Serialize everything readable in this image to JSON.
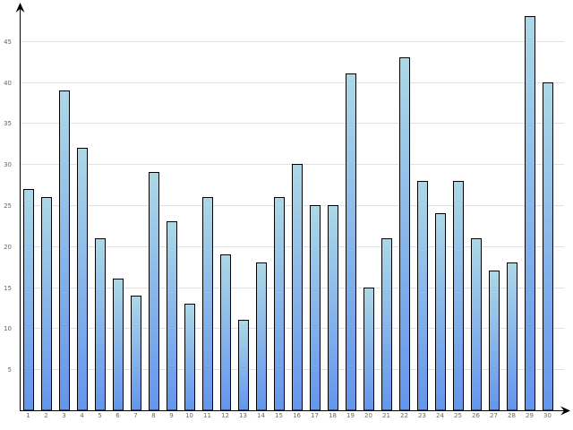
{
  "chart_data": {
    "type": "bar",
    "categories": [
      "1",
      "2",
      "3",
      "4",
      "5",
      "6",
      "7",
      "8",
      "9",
      "10",
      "11",
      "12",
      "13",
      "14",
      "15",
      "16",
      "17",
      "18",
      "19",
      "20",
      "21",
      "22",
      "23",
      "24",
      "25",
      "26",
      "27",
      "28",
      "29",
      "30"
    ],
    "values": [
      27,
      26,
      39,
      32,
      21,
      16,
      14,
      29,
      23,
      13,
      26,
      19,
      11,
      18,
      26,
      30,
      25,
      25,
      41,
      15,
      21,
      43,
      28,
      24,
      28,
      21,
      17,
      18,
      48,
      40
    ],
    "y_ticks": [
      "5",
      "10",
      "15",
      "20",
      "25",
      "30",
      "35",
      "40",
      "45"
    ],
    "ylim": [
      0,
      50
    ],
    "grid": true,
    "legend": "none",
    "colors": {
      "bar_top": "#add8e6",
      "bar_bottom": "#6495ed",
      "grid": "#e2e2e2",
      "axis": "#000000"
    }
  }
}
